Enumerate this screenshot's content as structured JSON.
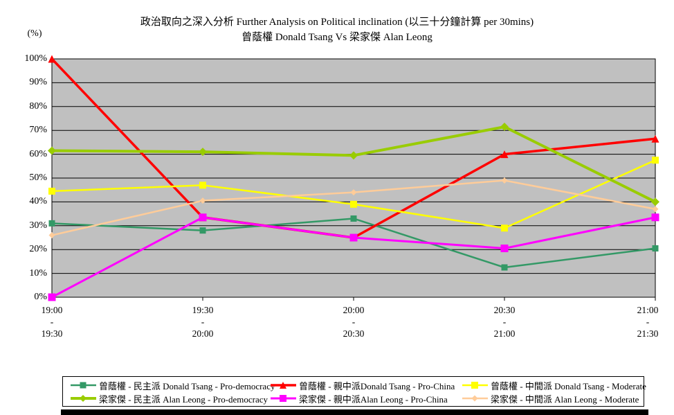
{
  "title": {
    "line1": "政治取向之深入分析 Further Analysis on Political inclination (以三十分鐘計算 per 30mins)",
    "line2": "曾蔭權 Donald Tsang Vs 梁家傑 Alan Leong"
  },
  "y_axis": {
    "unit_label": "(%)",
    "ticks": [
      "0%",
      "10%",
      "20%",
      "30%",
      "40%",
      "50%",
      "60%",
      "70%",
      "80%",
      "90%",
      "100%"
    ]
  },
  "x_axis": {
    "categories": [
      {
        "start": "19:00",
        "sep": "-",
        "end": "19:30"
      },
      {
        "start": "19:30",
        "sep": "-",
        "end": "20:00"
      },
      {
        "start": "20:00",
        "sep": "-",
        "end": "20:30"
      },
      {
        "start": "20:30",
        "sep": "-",
        "end": "21:00"
      },
      {
        "start": "21:00",
        "sep": "-",
        "end": "21:30"
      }
    ]
  },
  "chart_data": {
    "type": "line",
    "title": "政治取向之深入分析 Further Analysis on Political inclination (以三十分鐘計算 per 30mins) 曾蔭權 Donald Tsang Vs 梁家傑 Alan Leong",
    "xlabel": "",
    "ylabel": "(%)",
    "ylim": [
      0,
      100
    ],
    "y_step": 10,
    "grid": true,
    "plot_bg": "#C0C0C0",
    "legend_position": "bottom",
    "categories": [
      "19:00 - 19:30",
      "19:30 - 20:00",
      "20:00 - 20:30",
      "20:30 - 21:00",
      "21:00 - 21:30"
    ],
    "series": [
      {
        "name": "曾蔭權 - 民主派 Donald Tsang - Pro-democracy",
        "color": "#339966",
        "marker": "square",
        "line_width": 2.5,
        "marker_size": 9,
        "values": [
          31,
          28,
          33,
          12.5,
          20.5
        ]
      },
      {
        "name": "曾蔭權 - 親中派Donald Tsang - Pro-China",
        "color": "#FF0000",
        "marker": "triangle",
        "line_width": 3.5,
        "marker_size": 11,
        "values": [
          100,
          33.5,
          25,
          60,
          66.5
        ]
      },
      {
        "name": "曾蔭權 - 中間派 Donald Tsang - Moderate",
        "color": "#FFFF00",
        "marker": "square",
        "line_width": 2.5,
        "marker_size": 10,
        "values": [
          44.5,
          47,
          39,
          29,
          57.5
        ]
      },
      {
        "name": "梁家傑 - 民主派 Alan Leong - Pro-democracy",
        "color": "#99CC00",
        "marker": "diamond",
        "line_width": 4,
        "marker_size": 12,
        "values": [
          61.5,
          61,
          59.5,
          71.5,
          40
        ]
      },
      {
        "name": "梁家傑 - 親中派Alan Leong - Pro-China",
        "color": "#FF00FF",
        "marker": "square",
        "line_width": 3,
        "marker_size": 11,
        "values": [
          0,
          33.5,
          25,
          20.5,
          33.5
        ]
      },
      {
        "name": "梁家傑 - 中間派 Alan Leong - Moderate",
        "color": "#FFCC99",
        "marker": "diamond",
        "line_width": 2.5,
        "marker_size": 9,
        "values": [
          26,
          40.5,
          44,
          49,
          37
        ]
      }
    ]
  }
}
